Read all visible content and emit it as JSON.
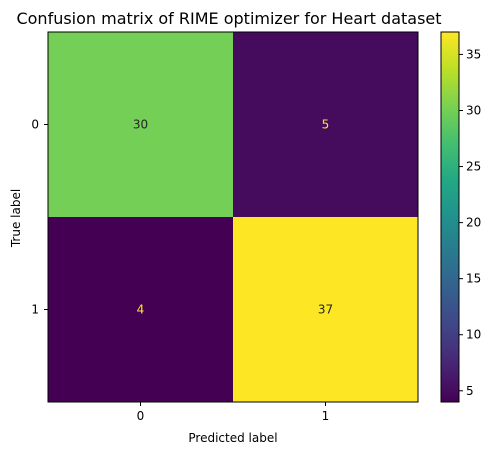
{
  "chart_data": {
    "type": "heatmap",
    "title": "Confusion matrix of RIME optimizer for Heart dataset",
    "xlabel": "Predicted label",
    "ylabel": "True label",
    "x_categories": [
      "0",
      "1"
    ],
    "y_categories": [
      "0",
      "1"
    ],
    "values": [
      [
        30,
        5
      ],
      [
        4,
        37
      ]
    ],
    "colormap": "viridis",
    "color_range": [
      4,
      37
    ],
    "colorbar_ticks": [
      5,
      10,
      15,
      20,
      25,
      30,
      35
    ],
    "cell_text_colors": {
      "dark_cell": "#fde725",
      "light_cell": "#262626"
    }
  }
}
